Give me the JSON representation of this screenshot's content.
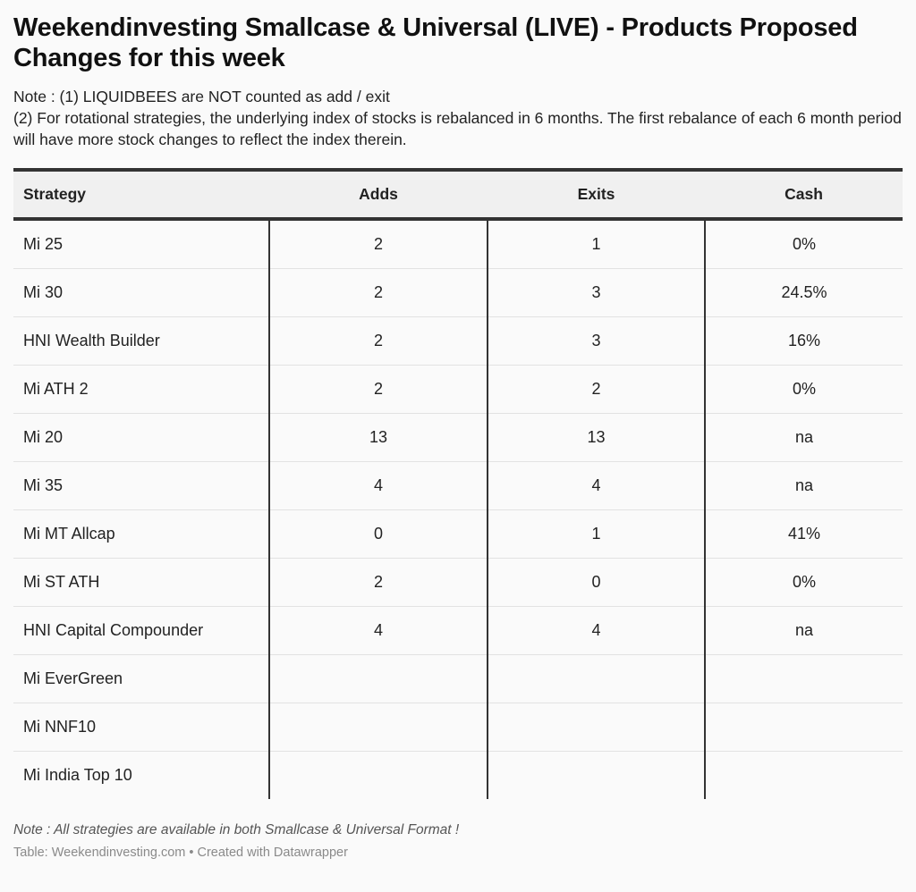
{
  "header": {
    "title": "Weekendinvesting Smallcase & Universal (LIVE) - Products Proposed Changes for this week",
    "note_1": "Note : (1) LIQUIDBEES are NOT counted as add / exit",
    "note_2": "(2) For rotational strategies, the underlying index of stocks is rebalanced in 6 months. The first rebalance of each 6 month period will have more stock changes to reflect the index therein."
  },
  "chart_data": {
    "type": "table",
    "columns": [
      "Strategy",
      "Adds",
      "Exits",
      "Cash"
    ],
    "rows": [
      {
        "strategy": "Mi 25",
        "adds": "2",
        "exits": "1",
        "cash": "0%"
      },
      {
        "strategy": "Mi 30",
        "adds": "2",
        "exits": "3",
        "cash": "24.5%"
      },
      {
        "strategy": "HNI Wealth Builder",
        "adds": "2",
        "exits": "3",
        "cash": "16%"
      },
      {
        "strategy": "Mi ATH 2",
        "adds": "2",
        "exits": "2",
        "cash": "0%"
      },
      {
        "strategy": "Mi 20",
        "adds": "13",
        "exits": "13",
        "cash": "na"
      },
      {
        "strategy": "Mi 35",
        "adds": "4",
        "exits": "4",
        "cash": "na"
      },
      {
        "strategy": "Mi MT Allcap",
        "adds": "0",
        "exits": "1",
        "cash": "41%"
      },
      {
        "strategy": "Mi ST ATH",
        "adds": "2",
        "exits": "0",
        "cash": "0%"
      },
      {
        "strategy": "HNI Capital Compounder",
        "adds": "4",
        "exits": "4",
        "cash": "na"
      },
      {
        "strategy": "Mi EverGreen",
        "adds": "",
        "exits": "",
        "cash": ""
      },
      {
        "strategy": "Mi NNF10",
        "adds": "",
        "exits": "",
        "cash": ""
      },
      {
        "strategy": "Mi India Top 10",
        "adds": "",
        "exits": "",
        "cash": ""
      }
    ]
  },
  "footer": {
    "note": "Note : All strategies are available in both Smallcase & Universal Format !",
    "source": "Table: Weekendinvesting.com • Created with Datawrapper"
  }
}
